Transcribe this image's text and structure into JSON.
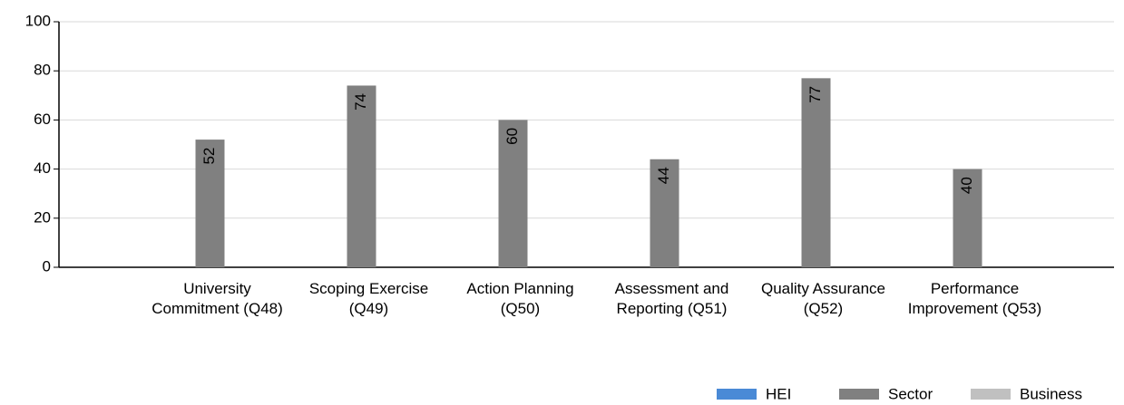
{
  "chart_data": {
    "type": "bar",
    "categories": [
      "University Commitment (Q48)",
      "Scoping Exercise (Q49)",
      "Action Planning (Q50)",
      "Assessment and Reporting (Q51)",
      "Quality Assurance (Q52)",
      "Performance Improvement (Q53)"
    ],
    "series": [
      {
        "name": "HEI",
        "color": "#4a8ad6",
        "values": [
          null,
          null,
          null,
          null,
          null,
          null
        ]
      },
      {
        "name": "Sector",
        "color": "#808080",
        "values": [
          52,
          74,
          60,
          44,
          77,
          40
        ]
      },
      {
        "name": "Business",
        "color": "#c0c0c0",
        "values": [
          null,
          null,
          null,
          null,
          null,
          null
        ]
      }
    ],
    "ylim": [
      0,
      100
    ],
    "yticks": [
      0,
      20,
      40,
      60,
      80,
      100
    ],
    "grid": true,
    "legend": "bottom-right"
  }
}
